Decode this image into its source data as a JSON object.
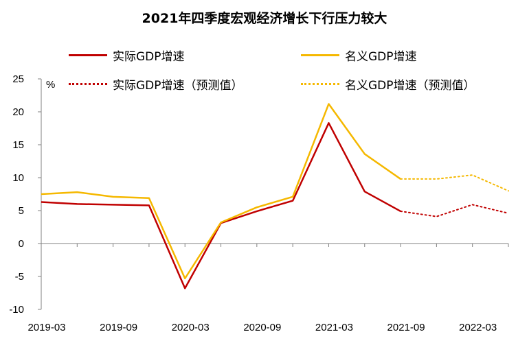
{
  "chart_data": {
    "type": "line",
    "title": "2021年四季度宏观经济增长下行压力较大",
    "ylabel": "%",
    "xlabel": "",
    "ylim": [
      -10,
      25
    ],
    "yticks": [
      25,
      20,
      15,
      10,
      5,
      0,
      -5,
      -10
    ],
    "xticks": [
      "2019-03",
      "2019-09",
      "2020-03",
      "2020-09",
      "2021-03",
      "2021-09",
      "2022-03"
    ],
    "x": [
      "2019-03",
      "2019-06",
      "2019-09",
      "2019-12",
      "2020-03",
      "2020-06",
      "2020-09",
      "2020-12",
      "2021-03",
      "2021-06",
      "2021-09",
      "2021-12",
      "2022-03",
      "2022-06"
    ],
    "grid": false,
    "legend_position": "top",
    "series": [
      {
        "name": "实际GDP增速",
        "color": "#C00000",
        "style": "solid",
        "values": [
          6.3,
          6.0,
          5.9,
          5.8,
          -6.8,
          3.1,
          4.9,
          6.5,
          18.3,
          7.9,
          4.9,
          null,
          null,
          null
        ]
      },
      {
        "name": "名义GDP增速",
        "color": "#F5B800",
        "style": "solid",
        "values": [
          7.5,
          7.8,
          7.1,
          6.9,
          -5.3,
          3.2,
          5.5,
          7.1,
          21.2,
          13.6,
          9.8,
          null,
          null,
          null
        ]
      },
      {
        "name": "实际GDP增速（预测值）",
        "color": "#C00000",
        "style": "dotted",
        "values": [
          null,
          null,
          null,
          null,
          null,
          null,
          null,
          null,
          null,
          null,
          4.9,
          4.1,
          5.9,
          4.6
        ]
      },
      {
        "name": "名义GDP增速（预测值）",
        "color": "#F5B800",
        "style": "dotted",
        "values": [
          null,
          null,
          null,
          null,
          null,
          null,
          null,
          null,
          null,
          null,
          9.8,
          9.8,
          10.4,
          8.0
        ]
      }
    ]
  }
}
